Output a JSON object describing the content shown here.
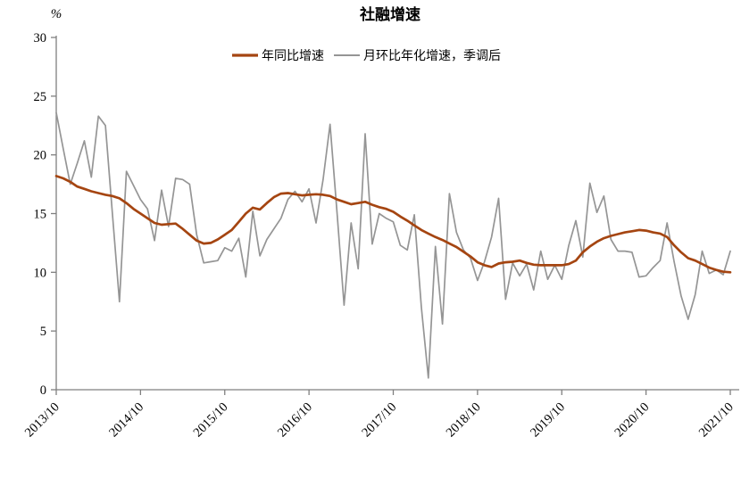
{
  "title": "社融增速",
  "unit_label": "%",
  "colors": {
    "axis": "#7f7f7f",
    "text": "#000000",
    "background": "#ffffff",
    "series_yoy": "#A54511",
    "series_mom": "#959595"
  },
  "chart_data": {
    "type": "line",
    "title": "社融增速",
    "ylabel_unit": "%",
    "ylim": [
      0,
      30
    ],
    "y_ticks": [
      0,
      5,
      10,
      15,
      20,
      25,
      30
    ],
    "x_tick_labels": [
      "2013/10",
      "2014/10",
      "2015/10",
      "2016/10",
      "2017/10",
      "2018/10",
      "2019/10",
      "2020/10",
      "2021/10"
    ],
    "x_interval": "monthly",
    "x_range": [
      "2013/10",
      "2021/10"
    ],
    "grid": false,
    "legend_position": "top-center",
    "series": [
      {
        "name": "年同比增速",
        "color": "#A54511",
        "width": 2.7,
        "values": [
          18.2,
          18.0,
          17.7,
          17.3,
          17.1,
          16.9,
          16.75,
          16.6,
          16.5,
          16.3,
          15.9,
          15.4,
          15.0,
          14.6,
          14.2,
          14.05,
          14.1,
          14.15,
          13.7,
          13.2,
          12.7,
          12.45,
          12.5,
          12.8,
          13.2,
          13.6,
          14.3,
          15.0,
          15.5,
          15.35,
          15.9,
          16.4,
          16.7,
          16.75,
          16.65,
          16.55,
          16.6,
          16.65,
          16.6,
          16.5,
          16.2,
          16.0,
          15.8,
          15.9,
          16.0,
          15.75,
          15.55,
          15.4,
          15.15,
          14.75,
          14.4,
          14.0,
          13.6,
          13.3,
          13.0,
          12.75,
          12.45,
          12.15,
          11.75,
          11.35,
          10.85,
          10.6,
          10.45,
          10.75,
          10.85,
          10.9,
          11.0,
          10.8,
          10.65,
          10.6,
          10.6,
          10.6,
          10.6,
          10.7,
          11.0,
          11.7,
          12.2,
          12.6,
          12.9,
          13.1,
          13.25,
          13.4,
          13.5,
          13.6,
          13.55,
          13.4,
          13.3,
          13.0,
          12.3,
          11.7,
          11.2,
          11.0,
          10.7,
          10.4,
          10.2,
          10.05,
          10.0
        ]
      },
      {
        "name": "月环比年化增速，季调后",
        "color": "#959595",
        "width": 1.7,
        "values": [
          23.6,
          20.5,
          17.5,
          19.3,
          21.2,
          18.1,
          23.3,
          22.5,
          15.0,
          7.5,
          18.6,
          17.4,
          16.2,
          15.4,
          12.7,
          17.0,
          13.9,
          18.0,
          17.9,
          17.5,
          13.2,
          10.8,
          10.9,
          11.0,
          12.1,
          11.8,
          12.9,
          9.6,
          15.2,
          11.4,
          12.8,
          13.7,
          14.6,
          16.2,
          16.9,
          16.0,
          17.1,
          14.2,
          17.9,
          22.6,
          15.0,
          7.2,
          14.2,
          10.3,
          21.8,
          12.4,
          15.0,
          14.6,
          14.3,
          12.3,
          11.9,
          14.9,
          7.0,
          1.0,
          12.2,
          5.6,
          16.7,
          13.4,
          11.9,
          11.2,
          9.3,
          10.9,
          13.0,
          16.3,
          7.7,
          10.8,
          9.7,
          10.7,
          8.5,
          11.8,
          9.4,
          10.6,
          9.4,
          12.3,
          14.4,
          11.3,
          17.6,
          15.1,
          16.5,
          12.8,
          11.8,
          11.8,
          11.7,
          9.6,
          9.7,
          10.4,
          11.0,
          14.2,
          10.9,
          8.0,
          6.0,
          8.1,
          11.8,
          9.9,
          10.2,
          9.8,
          11.8
        ]
      }
    ]
  }
}
